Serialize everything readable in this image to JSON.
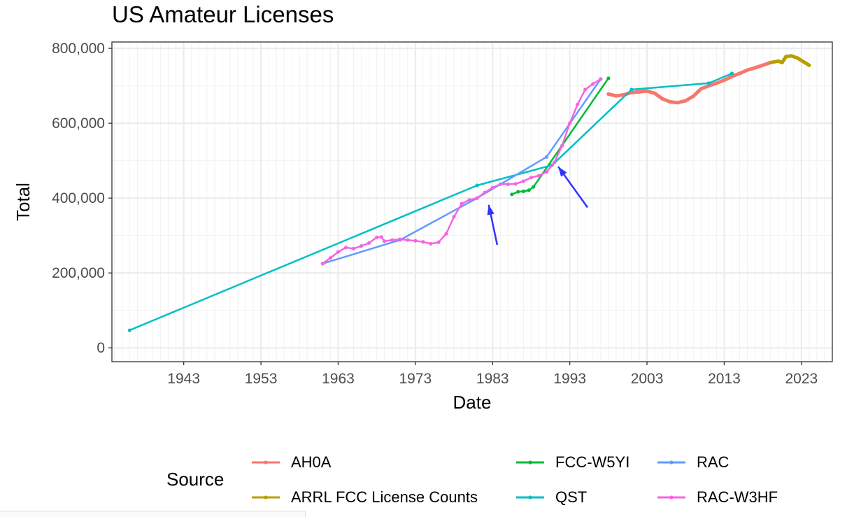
{
  "chart_data": {
    "type": "line",
    "title": "US Amateur Licenses",
    "xlabel": "Date",
    "ylabel": "Total",
    "xlim": [
      1933.7,
      2027
    ],
    "ylim": [
      -37000,
      817000
    ],
    "x_ticks": [
      1943,
      1953,
      1963,
      1973,
      1983,
      1993,
      2003,
      2013,
      2023
    ],
    "x_tick_labels": [
      "1943",
      "1953",
      "1963",
      "1973",
      "1983",
      "1993",
      "2003",
      "2013",
      "2023"
    ],
    "y_ticks": [
      0,
      200000,
      400000,
      600000,
      800000
    ],
    "y_tick_labels": [
      "0",
      "200,000",
      "400,000",
      "600,000",
      "800,000"
    ],
    "grid": true,
    "legend": {
      "title": "Source",
      "placement": "bottom",
      "entries": [
        "AH0A",
        "ARRL FCC License Counts",
        "FCC-W5YI",
        "QST",
        "RAC",
        "RAC-W3HF"
      ]
    },
    "series": [
      {
        "name": "AH0A",
        "color": "#F8766D",
        "thick": true,
        "x": [
          1998,
          1999,
          2000,
          2001,
          2002,
          2003,
          2004,
          2005,
          2006,
          2007,
          2008,
          2009,
          2010,
          2011,
          2012,
          2013,
          2014,
          2015,
          2016,
          2017,
          2018,
          2019
        ],
        "y": [
          678000,
          673000,
          676000,
          682000,
          684000,
          686000,
          680000,
          665000,
          657000,
          655000,
          660000,
          672000,
          692000,
          700000,
          707000,
          715000,
          725000,
          733000,
          742000,
          748000,
          755000,
          762000
        ]
      },
      {
        "name": "ARRL FCC License Counts",
        "color": "#B79F00",
        "thick": true,
        "x": [
          2019,
          2020,
          2020.5,
          2021,
          2021.7,
          2022.5,
          2023.2,
          2024
        ],
        "y": [
          762000,
          766000,
          762000,
          778000,
          780000,
          774000,
          765000,
          755000
        ]
      },
      {
        "name": "FCC-W5YI",
        "color": "#00BA38",
        "thick": false,
        "x": [
          1985.5,
          1986.3,
          1987,
          1987.7,
          1988.3,
          1998
        ],
        "y": [
          410000,
          417000,
          418000,
          421000,
          430000,
          720000
        ]
      },
      {
        "name": "QST",
        "color": "#00BFC4",
        "thick": false,
        "x": [
          1936,
          1981,
          1990.7,
          2001,
          2011,
          2014
        ],
        "y": [
          47000,
          434000,
          488000,
          690000,
          707000,
          733000
        ]
      },
      {
        "name": "RAC",
        "color": "#619CFF",
        "thick": false,
        "x": [
          1961,
          1971,
          1981,
          1990,
          1997
        ],
        "y": [
          225000,
          288000,
          400000,
          510000,
          718000
        ]
      },
      {
        "name": "RAC-W3HF",
        "color": "#F564E3",
        "thick": false,
        "x": [
          1961,
          1962,
          1963,
          1964,
          1965,
          1966,
          1967,
          1968,
          1968.6,
          1969,
          1970,
          1971,
          1972,
          1973,
          1974,
          1975,
          1976,
          1977,
          1978,
          1979,
          1980,
          1981,
          1982,
          1983,
          1984,
          1985,
          1986,
          1987,
          1988,
          1989,
          1990,
          1991,
          1992,
          1993,
          1994,
          1995,
          1996,
          1997
        ],
        "y": [
          225000,
          240000,
          256000,
          268000,
          265000,
          272000,
          280000,
          295000,
          296000,
          285000,
          288000,
          290000,
          288000,
          286000,
          283000,
          278000,
          282000,
          305000,
          350000,
          385000,
          395000,
          400000,
          415000,
          428000,
          437000,
          437000,
          438000,
          445000,
          455000,
          460000,
          470000,
          495000,
          540000,
          600000,
          650000,
          690000,
          705000,
          718000
        ]
      }
    ],
    "annotations": [
      {
        "type": "arrow",
        "color": "#3333FF",
        "from": [
          1983.6,
          275000
        ],
        "to": [
          1982.5,
          382000
        ]
      },
      {
        "type": "arrow",
        "color": "#3333FF",
        "from": [
          1995.3,
          375000
        ],
        "to": [
          1991.5,
          484000
        ]
      }
    ]
  }
}
